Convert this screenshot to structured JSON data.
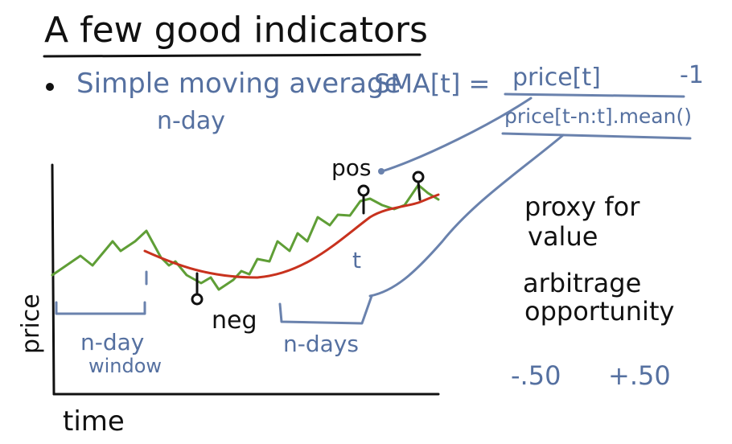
{
  "title": "A few good indicators",
  "bullet": {
    "text": "Simple moving average",
    "sub": "n-day"
  },
  "formula": {
    "lhs": "SMA[t] =",
    "numerator": "price[t]",
    "denominator": "price[t-n:t].mean()",
    "suffix": "-1"
  },
  "chart": {
    "ylabel": "price",
    "xlabel": "time",
    "window_label_1": "n-day",
    "window_label_2": "window",
    "ndays_label": "n-days",
    "t_label": "t",
    "pos_label": "pos",
    "neg_label": "neg"
  },
  "notes": {
    "proxy_1": "proxy for",
    "proxy_2": "value",
    "arb_1": "arbitrage",
    "arb_2": "opportunity",
    "range_low": "-.50",
    "range_high": "+.50"
  },
  "colors": {
    "ink": "#111111",
    "blue": "#6a82ad",
    "price_line": "#5f9e36",
    "sma_line": "#c8321e"
  }
}
